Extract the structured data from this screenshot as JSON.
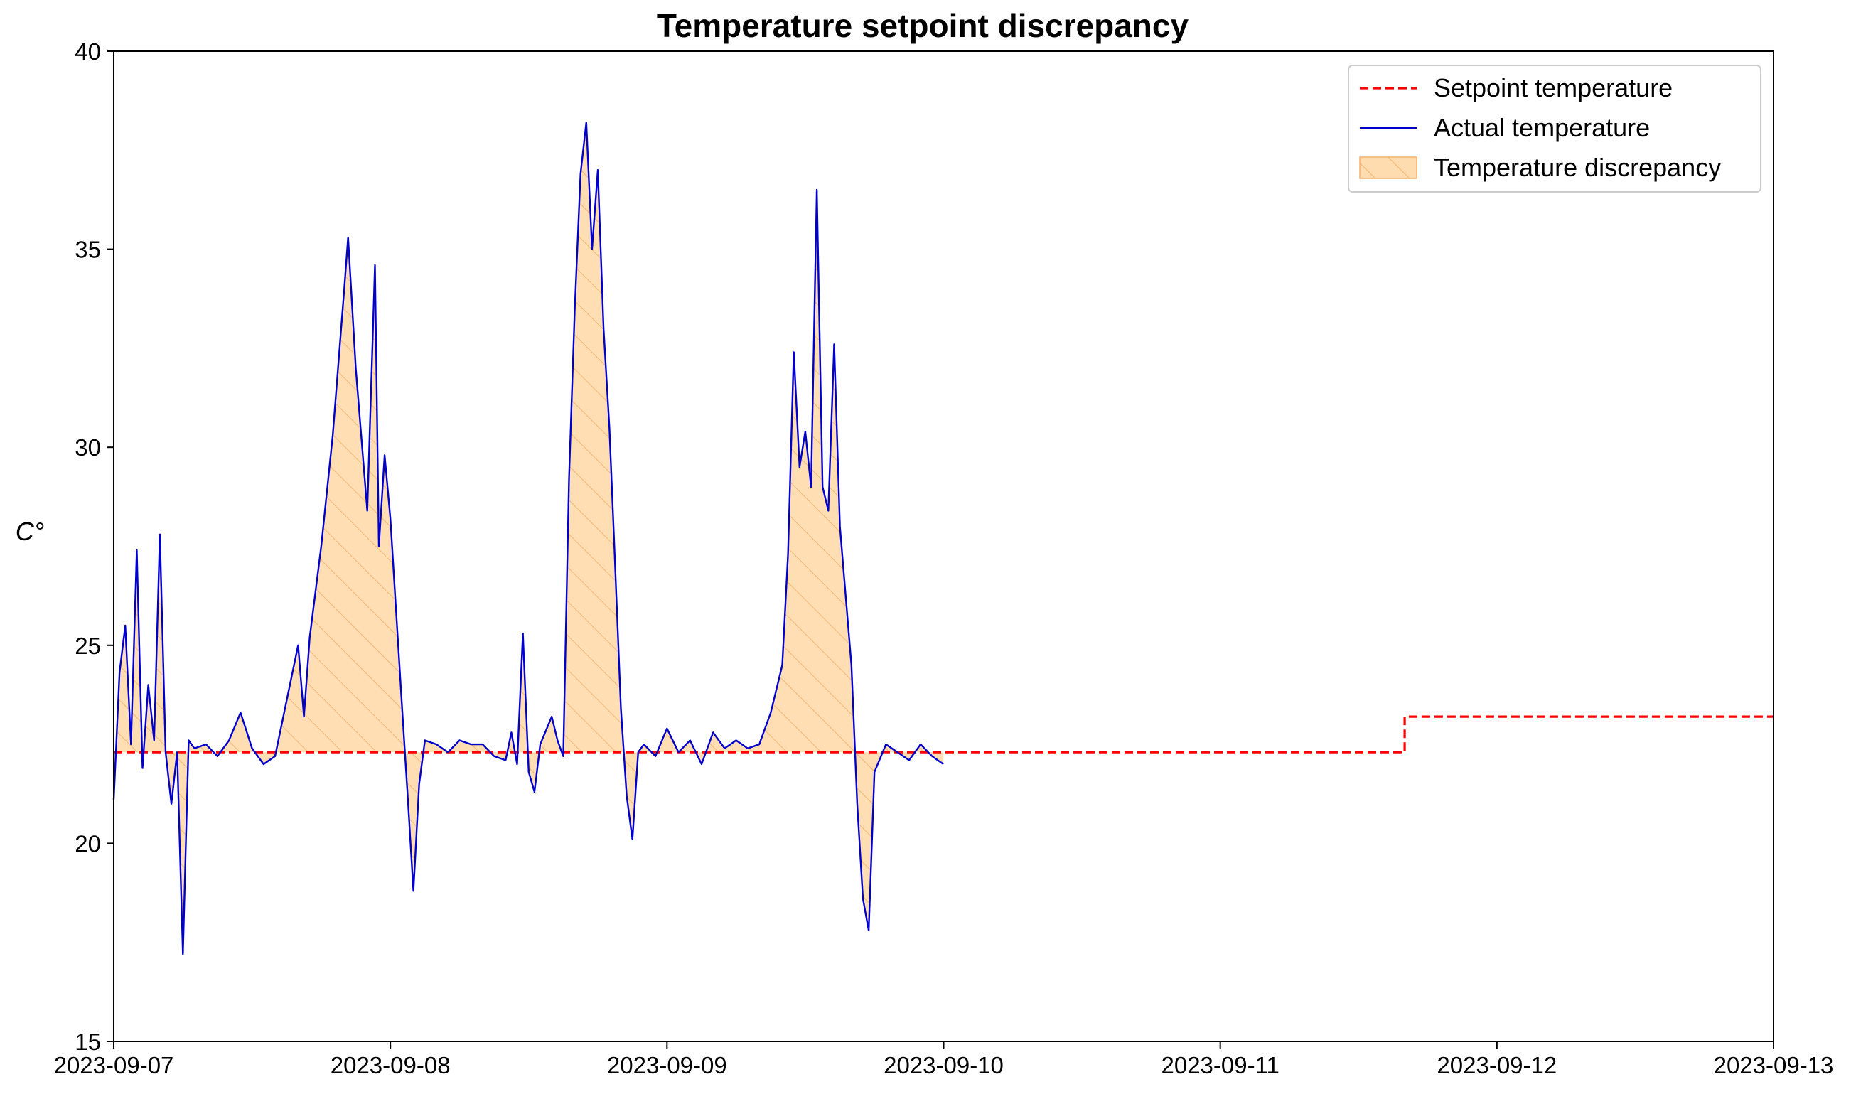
{
  "chart_data": {
    "type": "line",
    "title": "Temperature setpoint discrepancy",
    "xlabel": "",
    "ylabel": "C°",
    "ylim": [
      15,
      40
    ],
    "xlim": [
      "2023-09-07",
      "2023-09-13"
    ],
    "x_ticks": [
      "2023-09-07",
      "2023-09-08",
      "2023-09-09",
      "2023-09-10",
      "2023-09-11",
      "2023-09-12",
      "2023-09-13"
    ],
    "y_ticks": [
      15,
      20,
      25,
      30,
      35,
      40
    ],
    "grid": false,
    "legend_position": "top-right",
    "colors": {
      "setpoint": "#ff0000",
      "actual": "#0000cd",
      "discrepancy_fill": "#ffdcb0",
      "discrepancy_hatch": "#f5b26a"
    },
    "series": [
      {
        "name": "Setpoint temperature",
        "style": "dashed",
        "points": [
          [
            "2023-09-07 00:00",
            22.3
          ],
          [
            "2023-09-11 16:00",
            22.3
          ],
          [
            "2023-09-11 16:00",
            23.2
          ],
          [
            "2023-09-13 00:00",
            23.2
          ]
        ]
      },
      {
        "name": "Actual temperature",
        "style": "solid",
        "points": [
          [
            "2023-09-07 00:00",
            21.1
          ],
          [
            "2023-09-07 00:30",
            24.3
          ],
          [
            "2023-09-07 01:00",
            25.5
          ],
          [
            "2023-09-07 01:30",
            22.5
          ],
          [
            "2023-09-07 02:00",
            27.4
          ],
          [
            "2023-09-07 02:30",
            21.9
          ],
          [
            "2023-09-07 03:00",
            24.0
          ],
          [
            "2023-09-07 03:30",
            22.6
          ],
          [
            "2023-09-07 04:00",
            27.8
          ],
          [
            "2023-09-07 04:30",
            22.3
          ],
          [
            "2023-09-07 05:00",
            21.0
          ],
          [
            "2023-09-07 05:30",
            22.3
          ],
          [
            "2023-09-07 06:00",
            17.2
          ],
          [
            "2023-09-07 06:30",
            22.6
          ],
          [
            "2023-09-07 07:00",
            22.4
          ],
          [
            "2023-09-07 08:00",
            22.5
          ],
          [
            "2023-09-07 09:00",
            22.2
          ],
          [
            "2023-09-07 10:00",
            22.6
          ],
          [
            "2023-09-07 11:00",
            23.3
          ],
          [
            "2023-09-07 12:00",
            22.4
          ],
          [
            "2023-09-07 13:00",
            22.0
          ],
          [
            "2023-09-07 14:00",
            22.2
          ],
          [
            "2023-09-07 15:00",
            23.6
          ],
          [
            "2023-09-07 16:00",
            25.0
          ],
          [
            "2023-09-07 16:30",
            23.2
          ],
          [
            "2023-09-07 17:00",
            25.2
          ],
          [
            "2023-09-07 18:00",
            27.5
          ],
          [
            "2023-09-07 19:00",
            30.3
          ],
          [
            "2023-09-07 20:00",
            34.0
          ],
          [
            "2023-09-07 20:20",
            35.3
          ],
          [
            "2023-09-07 21:00",
            32.0
          ],
          [
            "2023-09-07 22:00",
            28.4
          ],
          [
            "2023-09-07 22:40",
            34.6
          ],
          [
            "2023-09-07 23:00",
            27.5
          ],
          [
            "2023-09-07 23:30",
            29.8
          ],
          [
            "2023-09-08 00:00",
            28.2
          ],
          [
            "2023-09-08 01:00",
            23.5
          ],
          [
            "2023-09-08 01:30",
            21.2
          ],
          [
            "2023-09-08 02:00",
            18.8
          ],
          [
            "2023-09-08 02:30",
            21.5
          ],
          [
            "2023-09-08 03:00",
            22.6
          ],
          [
            "2023-09-08 04:00",
            22.5
          ],
          [
            "2023-09-08 05:00",
            22.3
          ],
          [
            "2023-09-08 06:00",
            22.6
          ],
          [
            "2023-09-08 07:00",
            22.5
          ],
          [
            "2023-09-08 08:00",
            22.5
          ],
          [
            "2023-09-08 09:00",
            22.2
          ],
          [
            "2023-09-08 10:00",
            22.1
          ],
          [
            "2023-09-08 10:30",
            22.8
          ],
          [
            "2023-09-08 11:00",
            22.0
          ],
          [
            "2023-09-08 11:30",
            25.3
          ],
          [
            "2023-09-08 12:00",
            21.8
          ],
          [
            "2023-09-08 12:30",
            21.3
          ],
          [
            "2023-09-08 13:00",
            22.5
          ],
          [
            "2023-09-08 14:00",
            23.2
          ],
          [
            "2023-09-08 14:30",
            22.6
          ],
          [
            "2023-09-08 15:00",
            22.2
          ],
          [
            "2023-09-08 15:30",
            29.2
          ],
          [
            "2023-09-08 16:00",
            33.5
          ],
          [
            "2023-09-08 16:30",
            36.9
          ],
          [
            "2023-09-08 17:00",
            38.2
          ],
          [
            "2023-09-08 17:30",
            35.0
          ],
          [
            "2023-09-08 18:00",
            37.0
          ],
          [
            "2023-09-08 18:30",
            33.0
          ],
          [
            "2023-09-08 19:00",
            30.5
          ],
          [
            "2023-09-08 19:30",
            27.0
          ],
          [
            "2023-09-08 20:00",
            23.4
          ],
          [
            "2023-09-08 20:30",
            21.2
          ],
          [
            "2023-09-08 21:00",
            20.1
          ],
          [
            "2023-09-08 21:30",
            22.3
          ],
          [
            "2023-09-08 22:00",
            22.5
          ],
          [
            "2023-09-08 23:00",
            22.2
          ],
          [
            "2023-09-09 00:00",
            22.9
          ],
          [
            "2023-09-09 01:00",
            22.3
          ],
          [
            "2023-09-09 02:00",
            22.6
          ],
          [
            "2023-09-09 03:00",
            22.0
          ],
          [
            "2023-09-09 04:00",
            22.8
          ],
          [
            "2023-09-09 05:00",
            22.4
          ],
          [
            "2023-09-09 06:00",
            22.6
          ],
          [
            "2023-09-09 07:00",
            22.4
          ],
          [
            "2023-09-09 08:00",
            22.5
          ],
          [
            "2023-09-09 09:00",
            23.3
          ],
          [
            "2023-09-09 10:00",
            24.5
          ],
          [
            "2023-09-09 10:30",
            27.3
          ],
          [
            "2023-09-09 11:00",
            32.4
          ],
          [
            "2023-09-09 11:30",
            29.5
          ],
          [
            "2023-09-09 12:00",
            30.4
          ],
          [
            "2023-09-09 12:30",
            29.0
          ],
          [
            "2023-09-09 13:00",
            36.5
          ],
          [
            "2023-09-09 13:30",
            29.0
          ],
          [
            "2023-09-09 14:00",
            28.4
          ],
          [
            "2023-09-09 14:30",
            32.6
          ],
          [
            "2023-09-09 15:00",
            28.0
          ],
          [
            "2023-09-09 16:00",
            24.5
          ],
          [
            "2023-09-09 16:30",
            21.0
          ],
          [
            "2023-09-09 17:00",
            18.6
          ],
          [
            "2023-09-09 17:30",
            17.8
          ],
          [
            "2023-09-09 18:00",
            21.8
          ],
          [
            "2023-09-09 19:00",
            22.5
          ],
          [
            "2023-09-09 20:00",
            22.3
          ],
          [
            "2023-09-09 21:00",
            22.1
          ],
          [
            "2023-09-09 22:00",
            22.5
          ],
          [
            "2023-09-09 23:00",
            22.2
          ],
          [
            "2023-09-09 23:59",
            22.0
          ]
        ]
      },
      {
        "name": "Temperature discrepancy",
        "style": "fill-between",
        "between": [
          "Setpoint temperature",
          "Actual temperature"
        ]
      }
    ]
  }
}
